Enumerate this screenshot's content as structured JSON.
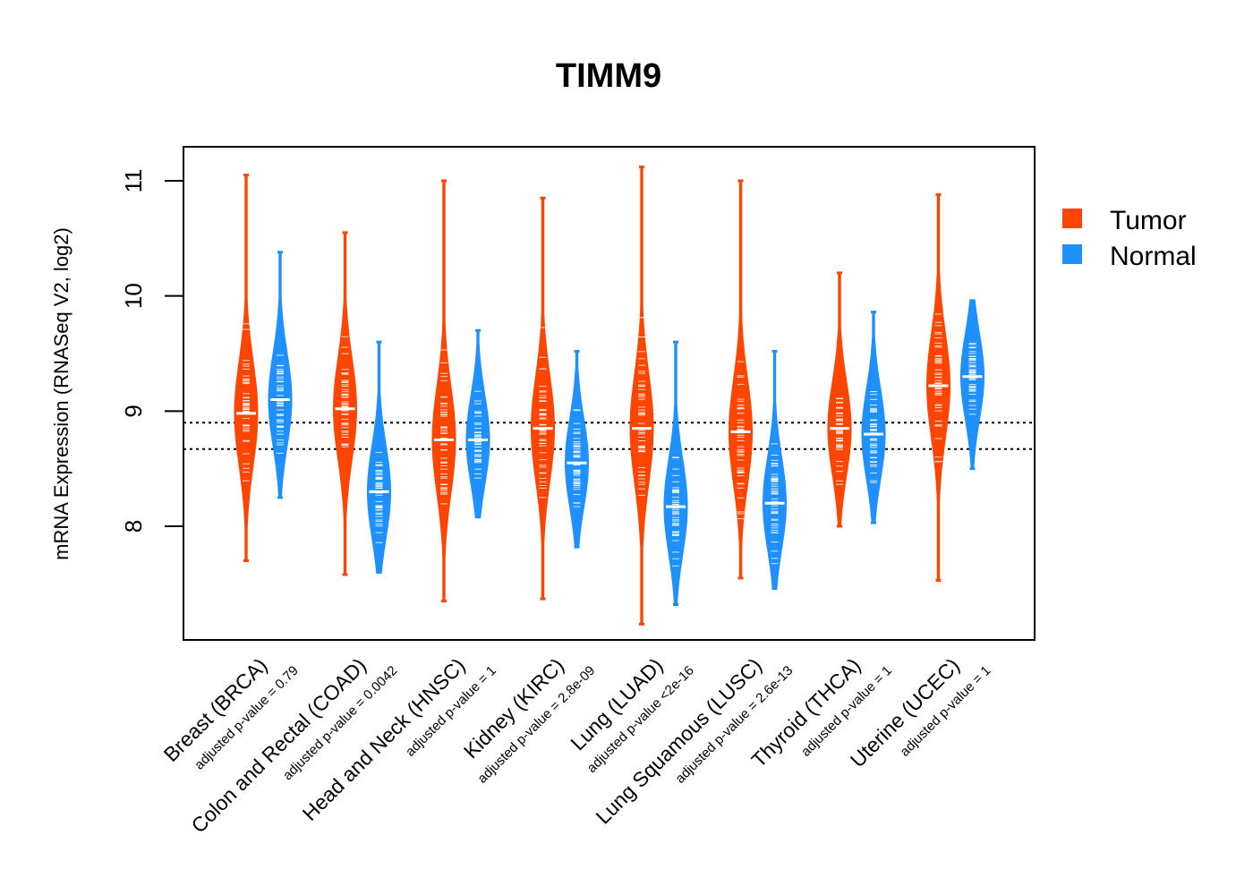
{
  "chart_data": {
    "type": "violin",
    "title": "TIMM9",
    "ylabel": "mRNA Expression (RNASeq V2, log2)",
    "xlabel": "",
    "ylim": [
      7.0,
      11.3
    ],
    "yticks": [
      "8",
      "9",
      "10",
      "11"
    ],
    "ytick_values": [
      8,
      9,
      10,
      11
    ],
    "reference_lines": [
      8.9,
      8.67
    ],
    "legend": {
      "placement": "right",
      "entries": [
        {
          "label": "Tumor",
          "color": "#ff4500"
        },
        {
          "label": "Normal",
          "color": "#1e90ff"
        }
      ]
    },
    "series_colors": {
      "Tumor": "#ff4500",
      "Normal": "#1e90ff"
    },
    "categories": [
      {
        "label": "Breast (BRCA)",
        "pvalue_label": "adjusted p-value = 0.79",
        "tumor": {
          "median": 8.98,
          "min": 7.7,
          "max": 11.05
        },
        "normal": {
          "median": 9.1,
          "min": 8.25,
          "max": 10.38
        }
      },
      {
        "label": "Colon and Rectal (COAD)",
        "pvalue_label": "adjusted p-value = 0.0042",
        "tumor": {
          "median": 9.02,
          "min": 7.58,
          "max": 10.55
        },
        "normal": {
          "median": 8.3,
          "min": 7.6,
          "max": 9.6
        }
      },
      {
        "label": "Head and Neck (HNSC)",
        "pvalue_label": "adjusted p-value = 1",
        "tumor": {
          "median": 8.75,
          "min": 7.35,
          "max": 11.0
        },
        "normal": {
          "median": 8.75,
          "min": 8.08,
          "max": 9.7
        }
      },
      {
        "label": "Kidney (KIRC)",
        "pvalue_label": "adjusted p-value = 2.8e-09",
        "tumor": {
          "median": 8.85,
          "min": 7.37,
          "max": 10.85
        },
        "normal": {
          "median": 8.55,
          "min": 7.82,
          "max": 9.52
        }
      },
      {
        "label": "Lung (LUAD)",
        "pvalue_label": "adjusted p-value <2e-16",
        "tumor": {
          "median": 8.85,
          "min": 7.15,
          "max": 11.12
        },
        "normal": {
          "median": 8.17,
          "min": 7.32,
          "max": 9.6
        }
      },
      {
        "label": "Lung Squamous (LUSC)",
        "pvalue_label": "adjusted p-value = 2.6e-13",
        "tumor": {
          "median": 8.82,
          "min": 7.55,
          "max": 11.0
        },
        "normal": {
          "median": 8.2,
          "min": 7.46,
          "max": 9.52
        }
      },
      {
        "label": "Thyroid (THCA)",
        "pvalue_label": "adjusted p-value = 1",
        "tumor": {
          "median": 8.85,
          "min": 8.0,
          "max": 10.2
        },
        "normal": {
          "median": 8.8,
          "min": 8.03,
          "max": 9.86
        }
      },
      {
        "label": "Uterine (UCEC)",
        "pvalue_label": "adjusted p-value = 1",
        "tumor": {
          "median": 9.22,
          "min": 7.53,
          "max": 10.88
        },
        "normal": {
          "median": 9.3,
          "min": 8.5,
          "max": 9.96
        }
      }
    ]
  }
}
